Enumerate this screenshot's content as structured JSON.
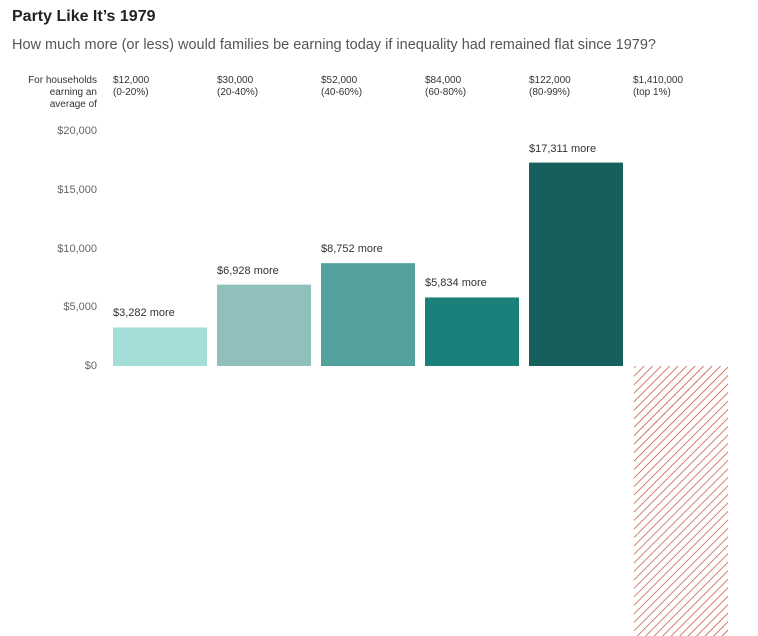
{
  "title": "Party Like It’s 1979",
  "subtitle": "How much more (or less) would families be earning today if inequality had remained flat since 1979?",
  "row_label": [
    "For households",
    "earning an",
    "average of"
  ],
  "colors": {
    "bars": [
      "#a5ddd8",
      "#8fc0bc",
      "#52a19c",
      "#1b7f7a",
      "#155f5c"
    ],
    "negative_hatch": "#c0392b"
  },
  "chart_data": {
    "type": "bar",
    "title": "Party Like It’s 1979",
    "subtitle": "How much more (or less) would families be earning today if inequality had remained flat since 1979?",
    "xlabel": "",
    "ylabel": "",
    "ylim": [
      0,
      20000
    ],
    "yticks": [
      "$20,000",
      "$15,000",
      "$10,000",
      "$5,000",
      "$0"
    ],
    "ytick_values": [
      20000,
      15000,
      10000,
      5000,
      0
    ],
    "grid": false,
    "categories": [
      {
        "income": "$12,000",
        "group": "(0-20%)"
      },
      {
        "income": "$30,000",
        "group": "(20-40%)"
      },
      {
        "income": "$52,000",
        "group": "(40-60%)"
      },
      {
        "income": "$84,000",
        "group": "(60-80%)"
      },
      {
        "income": "$122,000",
        "group": "(80-99%)"
      },
      {
        "income": "$1,410,000",
        "group": "(top 1%)"
      }
    ],
    "values": [
      3282,
      6928,
      8752,
      5834,
      17311,
      null
    ],
    "value_labels": [
      "$3,282 more",
      "$6,928 more",
      "$8,752 more",
      "$5,834 more",
      "$17,311 more",
      ""
    ],
    "negative_bar_index": 5,
    "negative_bar_note": "value off chart (large loss), drawn with hatching"
  }
}
